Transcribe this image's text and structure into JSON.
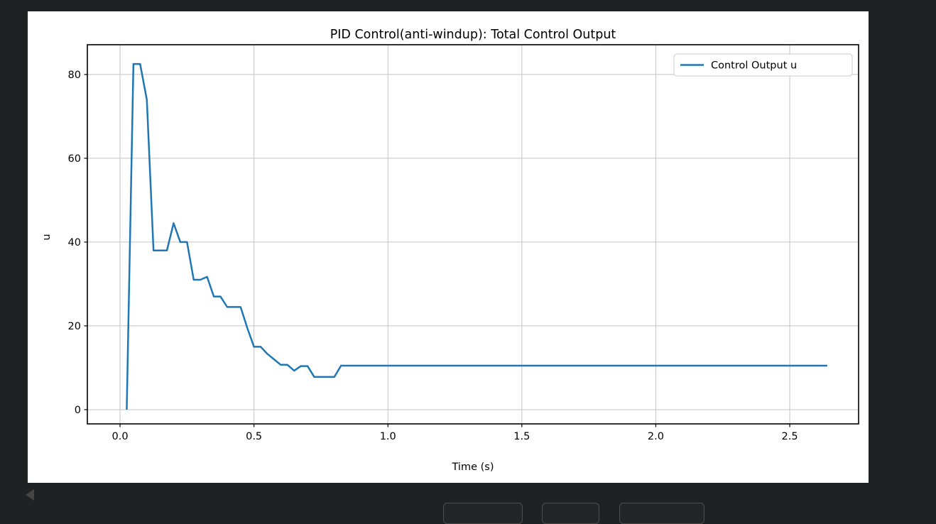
{
  "colors": {
    "app_background": "#202123",
    "figure_background": "#ffffff",
    "line": "#1f77b4",
    "grid": "#c4c4c4",
    "spine": "#000000",
    "legend_border": "#cccccc"
  },
  "chart_data": {
    "type": "line",
    "title": "PID Control(anti-windup): Total Control Output",
    "xlabel": "Time (s)",
    "ylabel": "u",
    "grid": true,
    "xlim": [
      -0.122,
      2.757
    ],
    "ylim": [
      -3.4,
      87.1
    ],
    "xticks": [
      0.0,
      0.5,
      1.0,
      1.5,
      2.0,
      2.5
    ],
    "xtick_labels": [
      "0.0",
      "0.5",
      "1.0",
      "1.5",
      "2.0",
      "2.5"
    ],
    "yticks": [
      0,
      20,
      40,
      60,
      80
    ],
    "ytick_labels": [
      "0",
      "20",
      "40",
      "60",
      "80"
    ],
    "legend": {
      "position": "upper right",
      "entries": [
        {
          "label": "Control Output u",
          "color": "#1f77b4"
        }
      ]
    },
    "series": [
      {
        "name": "Control Output u",
        "color": "#1f77b4",
        "points": [
          [
            0.025,
            0
          ],
          [
            0.05,
            82.5
          ],
          [
            0.075,
            82.5
          ],
          [
            0.1,
            74
          ],
          [
            0.125,
            38
          ],
          [
            0.15,
            38
          ],
          [
            0.175,
            38
          ],
          [
            0.2,
            44.5
          ],
          [
            0.225,
            40
          ],
          [
            0.25,
            40
          ],
          [
            0.275,
            31
          ],
          [
            0.3,
            31
          ],
          [
            0.325,
            31.7
          ],
          [
            0.35,
            27
          ],
          [
            0.375,
            27
          ],
          [
            0.4,
            24.5
          ],
          [
            0.425,
            24.5
          ],
          [
            0.45,
            24.5
          ],
          [
            0.475,
            19.5
          ],
          [
            0.5,
            15
          ],
          [
            0.525,
            15
          ],
          [
            0.55,
            13.3
          ],
          [
            0.575,
            12
          ],
          [
            0.6,
            10.7
          ],
          [
            0.625,
            10.7
          ],
          [
            0.65,
            9.3
          ],
          [
            0.675,
            10.4
          ],
          [
            0.7,
            10.4
          ],
          [
            0.725,
            7.8
          ],
          [
            0.75,
            7.8
          ],
          [
            0.775,
            7.8
          ],
          [
            0.8,
            7.8
          ],
          [
            0.825,
            10.5
          ],
          [
            0.85,
            10.5
          ],
          [
            1.0,
            10.5
          ],
          [
            1.25,
            10.5
          ],
          [
            1.5,
            10.5
          ],
          [
            1.75,
            10.5
          ],
          [
            2.0,
            10.5
          ],
          [
            2.25,
            10.5
          ],
          [
            2.5,
            10.5
          ],
          [
            2.64,
            10.5
          ]
        ]
      }
    ]
  }
}
